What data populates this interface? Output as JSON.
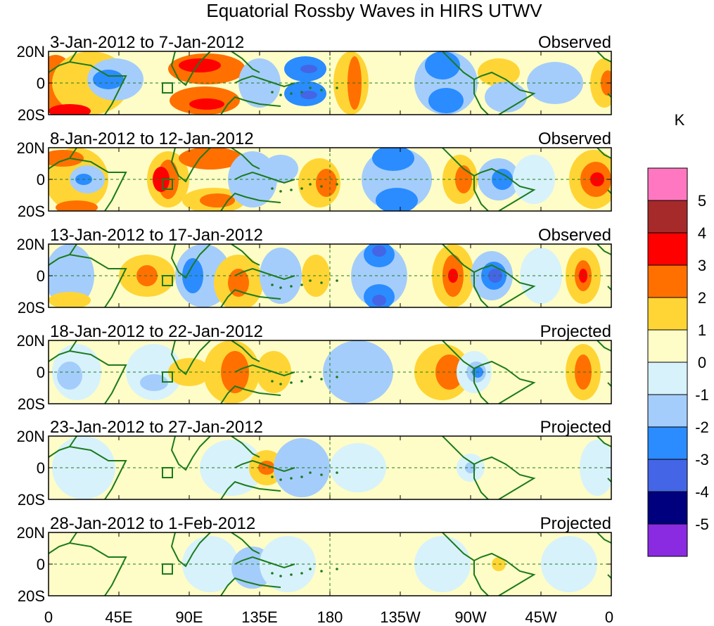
{
  "title": "Equatorial Rossby Waves in HIRS UTWV",
  "units_label": "K",
  "panels": [
    {
      "date_range": "3-Jan-2012 to 7-Jan-2012",
      "type": "Observed"
    },
    {
      "date_range": "8-Jan-2012 to 12-Jan-2012",
      "type": "Observed"
    },
    {
      "date_range": "13-Jan-2012 to 17-Jan-2012",
      "type": "Observed"
    },
    {
      "date_range": "18-Jan-2012 to 22-Jan-2012",
      "type": "Projected"
    },
    {
      "date_range": "23-Jan-2012 to 27-Jan-2012",
      "type": "Projected"
    },
    {
      "date_range": "28-Jan-2012 to 1-Feb-2012",
      "type": "Projected"
    }
  ],
  "lat_labels": [
    "20N",
    "0",
    "20S"
  ],
  "lon_labels": [
    "0",
    "45E",
    "90E",
    "135E",
    "180",
    "135W",
    "90W",
    "45W",
    "0"
  ],
  "colorbar": {
    "colors": [
      "#ff77c0",
      "#a62a2a",
      "#ff0000",
      "#ff7000",
      "#ffd535",
      "#fffdc7",
      "#d7f2fb",
      "#a4cdfb",
      "#2a8cff",
      "#4465e5",
      "#00007f",
      "#8a2be2"
    ],
    "labels": [
      "5",
      "4",
      "3",
      "2",
      "1",
      "0",
      "-1",
      "-2",
      "-3",
      "-4",
      "-5"
    ]
  }
}
